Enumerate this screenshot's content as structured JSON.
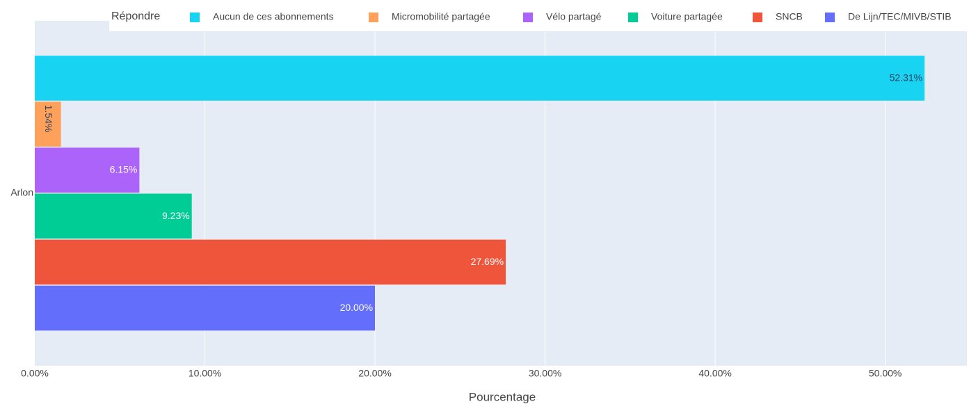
{
  "chart_data": {
    "type": "hbar",
    "x_label": "Pourcentage",
    "legend_title": "Répondre",
    "legend": "top",
    "grid": true,
    "categories": [
      "Arlon"
    ],
    "series": [
      {
        "name": "Aucun de ces abonnements",
        "color": "#19d3f3",
        "values": [
          52.31
        ],
        "value_labels": [
          "52.31%"
        ]
      },
      {
        "name": "Micromobilité partagée",
        "color": "#ffa15a",
        "values": [
          1.54
        ],
        "value_labels": [
          "1.54%"
        ]
      },
      {
        "name": "Vélo partagé",
        "color": "#ab63fa",
        "values": [
          6.15
        ],
        "value_labels": [
          "6.15%"
        ]
      },
      {
        "name": "Voiture partagée",
        "color": "#00cc96",
        "values": [
          9.23
        ],
        "value_labels": [
          "9.23%"
        ]
      },
      {
        "name": "SNCB",
        "color": "#ef553b",
        "values": [
          27.69
        ],
        "value_labels": [
          "27.69%"
        ]
      },
      {
        "name": "De Lijn/TEC/MIVB/STIB",
        "color": "#636efa",
        "values": [
          20.0
        ],
        "value_labels": [
          "20.00%"
        ]
      }
    ],
    "xlim": [
      0,
      54.8
    ],
    "xticks": [
      {
        "value": 0,
        "label": "0.00%"
      },
      {
        "value": 10,
        "label": "10.00%"
      },
      {
        "value": 20,
        "label": "20.00%"
      },
      {
        "value": 30,
        "label": "30.00%"
      },
      {
        "value": 40,
        "label": "40.00%"
      },
      {
        "value": 50,
        "label": "50.00%"
      }
    ]
  }
}
